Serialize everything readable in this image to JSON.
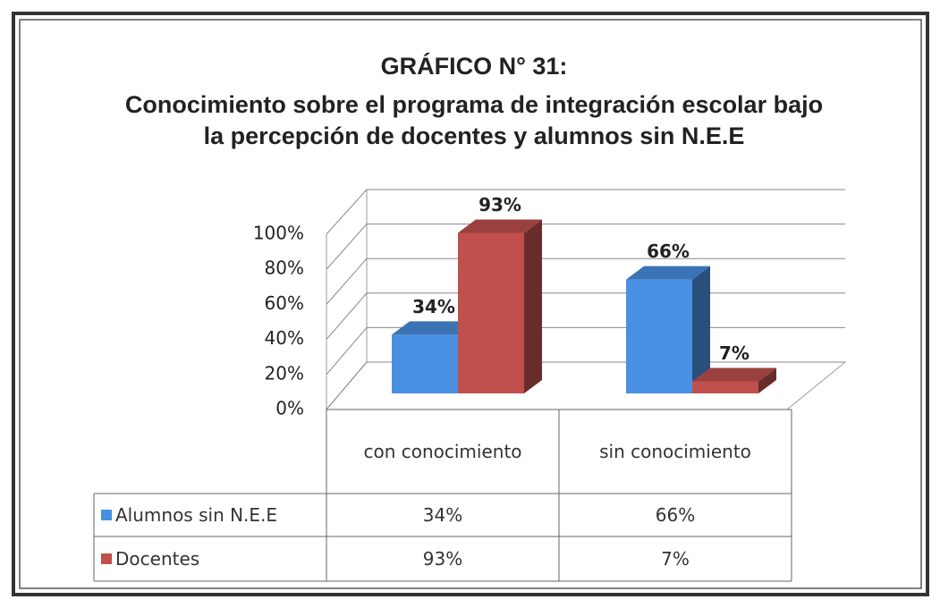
{
  "chart_data": {
    "type": "bar3d",
    "title": "GRÁFICO N° 31:",
    "subtitle": "Conocimiento sobre  el programa de integración escolar bajo la percepción de docentes y alumnos sin N.E.E",
    "categories": [
      "con conocimiento",
      "sin conocimiento"
    ],
    "series": [
      {
        "name": "Alumnos sin N.E.E",
        "color": "#4a90e2",
        "values": [
          34,
          66
        ],
        "value_labels": [
          "34%",
          "66%"
        ]
      },
      {
        "name": "Docentes",
        "color": "#c0504d",
        "values": [
          93,
          7
        ],
        "value_labels": [
          "93%",
          "7%"
        ]
      }
    ],
    "ylim": [
      0,
      100
    ],
    "yticks": [
      {
        "value": 0,
        "label": "0%"
      },
      {
        "value": 20,
        "label": "20%"
      },
      {
        "value": 40,
        "label": "40%"
      },
      {
        "value": 60,
        "label": "60%"
      },
      {
        "value": 80,
        "label": "80%"
      },
      {
        "value": 100,
        "label": "100%"
      }
    ],
    "grid": true,
    "data_table": true
  }
}
